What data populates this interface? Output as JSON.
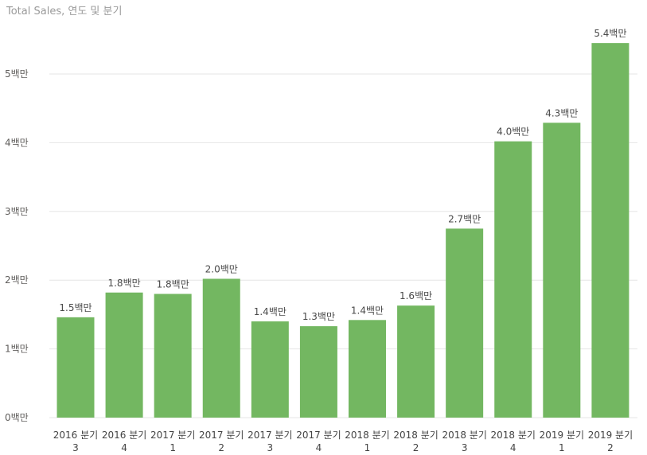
{
  "chart_data": {
    "type": "bar",
    "title": "Total Sales, 연도 및 분기",
    "xlabel": "",
    "ylabel": "",
    "ylim": [
      0,
      5.8
    ],
    "grid": true,
    "bar_color": "#73b761",
    "grid_color": "#e6e6e6",
    "y_ticks": [
      {
        "value": 0,
        "label": "0백만"
      },
      {
        "value": 1,
        "label": "1백만"
      },
      {
        "value": 2,
        "label": "2백만"
      },
      {
        "value": 3,
        "label": "3백만"
      },
      {
        "value": 4,
        "label": "4백만"
      },
      {
        "value": 5,
        "label": "5백만"
      }
    ],
    "categories": [
      {
        "line1": "2016 분기",
        "line2": "3"
      },
      {
        "line1": "2016 분기",
        "line2": "4"
      },
      {
        "line1": "2017 분기",
        "line2": "1"
      },
      {
        "line1": "2017 분기",
        "line2": "2"
      },
      {
        "line1": "2017 분기",
        "line2": "3"
      },
      {
        "line1": "2017 분기",
        "line2": "4"
      },
      {
        "line1": "2018 분기",
        "line2": "1"
      },
      {
        "line1": "2018 분기",
        "line2": "2"
      },
      {
        "line1": "2018 분기",
        "line2": "3"
      },
      {
        "line1": "2018 분기",
        "line2": "4"
      },
      {
        "line1": "2019 분기",
        "line2": "1"
      },
      {
        "line1": "2019 분기",
        "line2": "2"
      }
    ],
    "values": [
      1.46,
      1.82,
      1.8,
      2.02,
      1.4,
      1.33,
      1.42,
      1.63,
      2.75,
      4.02,
      4.29,
      5.45
    ],
    "data_labels": [
      "1.5백만",
      "1.8백만",
      "1.8백만",
      "2.0백만",
      "1.4백만",
      "1.3백만",
      "1.4백만",
      "1.6백만",
      "2.7백만",
      "4.0백만",
      "4.3백만",
      "5.4백만"
    ]
  }
}
